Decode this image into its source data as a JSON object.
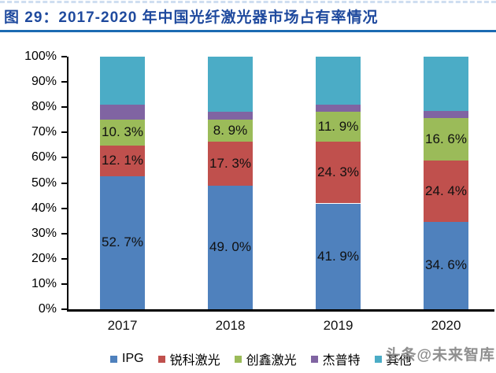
{
  "title": "图 29：2017-2020 年中国光纤激光器市场占有率情况",
  "watermark": "头条@未来智库",
  "colors": {
    "title_text": "#1F4A9E",
    "title_rule": "#1C6BB2",
    "axis": "#000000",
    "label_text": "#101010"
  },
  "chart_data": {
    "type": "bar",
    "stacked": true,
    "percent_stacked": true,
    "title": "图 29：2017-2020 年中国光纤激光器市场占有率情况",
    "xlabel": "",
    "ylabel": "",
    "ylim": [
      0,
      100
    ],
    "grid": false,
    "legend_position": "bottom",
    "categories": [
      "2017",
      "2018",
      "2019",
      "2020"
    ],
    "y_ticks": [
      "100%",
      "90%",
      "80%",
      "70%",
      "60%",
      "50%",
      "40%",
      "30%",
      "20%",
      "10%",
      "0%"
    ],
    "series": [
      {
        "name": "IPG",
        "slug": "ipg",
        "color": "#4F81BD",
        "values": [
          52.7,
          49.0,
          41.9,
          34.6
        ],
        "labels": [
          "52. 7%",
          "49. 0%",
          "41. 9%",
          "34. 6%"
        ]
      },
      {
        "name": "锐科激光",
        "slug": "raycus",
        "color": "#C0504D",
        "values": [
          12.1,
          17.3,
          24.3,
          24.4
        ],
        "labels": [
          "12. 1%",
          "17. 3%",
          "24. 3%",
          "24. 4%"
        ]
      },
      {
        "name": "创鑫激光",
        "slug": "maxphotonics",
        "color": "#9BBB59",
        "values": [
          10.3,
          8.9,
          11.9,
          16.6
        ],
        "labels": [
          "10. 3%",
          "8. 9%",
          "11. 9%",
          "16. 6%"
        ]
      },
      {
        "name": "杰普特",
        "slug": "jpt",
        "color": "#8064A2",
        "values": [
          6.0,
          3.0,
          3.0,
          3.0
        ],
        "labels": [
          null,
          null,
          null,
          null
        ]
      },
      {
        "name": "其他",
        "slug": "others",
        "color": "#4BACC6",
        "values": [
          18.9,
          21.8,
          18.9,
          21.4
        ],
        "labels": [
          null,
          null,
          null,
          null
        ]
      }
    ]
  }
}
